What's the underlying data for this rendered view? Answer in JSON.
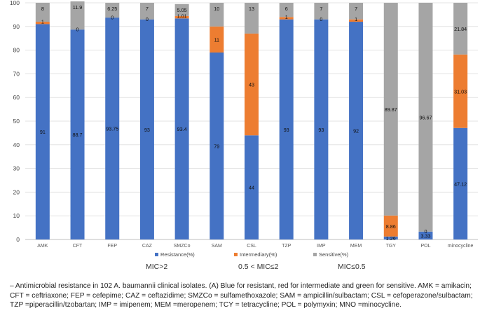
{
  "chart_data": {
    "type": "stacked_bar",
    "ylim": [
      0,
      100
    ],
    "yticks": [
      0,
      10,
      20,
      30,
      40,
      50,
      60,
      70,
      80,
      90,
      100
    ],
    "grid": true,
    "legend_position": "bottom",
    "categories": [
      "AMK",
      "CFT",
      "FEP",
      "CAZ",
      "SMZCo",
      "SAM",
      "CSL",
      "TZP",
      "IMP",
      "MEM",
      "TGY",
      "POL",
      "minocycline"
    ],
    "series": [
      {
        "name": "Resistance(%)",
        "color": "#4472C4",
        "values": [
          91,
          88.7,
          93.75,
          93,
          93.4,
          79,
          44,
          93,
          93,
          92,
          1.26,
          3.33,
          47.12
        ]
      },
      {
        "name": "Intermediary(%)",
        "color": "#ED7D31",
        "values": [
          1,
          0,
          0,
          0,
          1.01,
          11,
          43,
          1,
          0,
          1,
          8.86,
          0,
          31.03
        ]
      },
      {
        "name": "Sensitive(%)",
        "color": "#A5A5A5",
        "values": [
          8,
          11.9,
          6.25,
          7,
          5.05,
          10,
          13,
          6,
          7,
          7,
          89.87,
          96.67,
          21.84
        ]
      }
    ],
    "annotations": [
      "MIC>2",
      "0.5 < MIC≤2",
      "MIC≤0.5"
    ]
  },
  "caption": "– Antimicrobial resistance in 102 A. baumannii clinical isolates. (A) Blue for resistant, red for intermediate and green for sensitive. AMK = amikacin; CFT = ceftriaxone; FEP = cefepime; CAZ = ceftazidime; SMZCo = sulfamethoxazole; SAM = ampicillin/sulbactam; CSL = cefoperazone/sulbactam; TZP =piperacillin/tzobartan; IMP = imipenem; MEM =meropenem; TCY = tetracycline; POL = polymyxin; MNO =minocycline."
}
